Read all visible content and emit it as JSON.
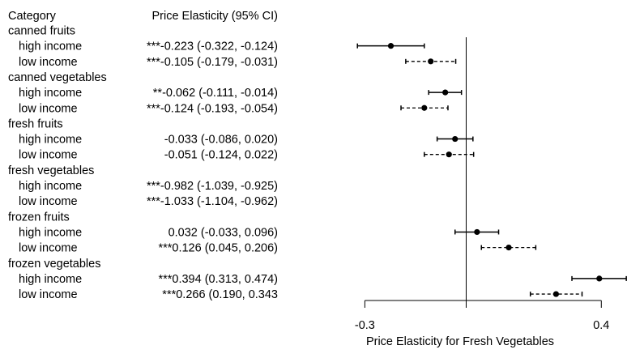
{
  "chart_data": {
    "type": "forest",
    "header": {
      "category": "Category",
      "estimate": "Price Elasticity (95% CI)"
    },
    "xlabel": "Price Elasticity for Fresh Vegetables",
    "xlim": [
      -0.33,
      0.48
    ],
    "xticks": [
      -0.3,
      0,
      0.4
    ],
    "xtick_labels": [
      "-0.3",
      "",
      "0.4"
    ],
    "reference_line": 0,
    "line_styles": {
      "high income": "solid",
      "low income": "dashed"
    },
    "groups": [
      {
        "category": "canned fruits",
        "rows": [
          {
            "label": "high income",
            "estimate_text": "***-0.223 (-0.322, -0.124)",
            "est": -0.223,
            "lo": -0.322,
            "hi": -0.124,
            "style": "solid"
          },
          {
            "label": "low income",
            "estimate_text": "***-0.105 (-0.179, -0.031)",
            "est": -0.105,
            "lo": -0.179,
            "hi": -0.031,
            "style": "dashed"
          }
        ]
      },
      {
        "category": "canned vegetables",
        "rows": [
          {
            "label": "high income",
            "estimate_text": "**-0.062 (-0.111, -0.014)",
            "est": -0.062,
            "lo": -0.111,
            "hi": -0.014,
            "style": "solid"
          },
          {
            "label": "low income",
            "estimate_text": "***-0.124 (-0.193, -0.054)",
            "est": -0.124,
            "lo": -0.193,
            "hi": -0.054,
            "style": "dashed"
          }
        ]
      },
      {
        "category": "fresh fruits",
        "rows": [
          {
            "label": "high income",
            "estimate_text": "-0.033 (-0.086,  0.020)",
            "est": -0.033,
            "lo": -0.086,
            "hi": 0.02,
            "style": "solid"
          },
          {
            "label": "low income",
            "estimate_text": "-0.051 (-0.124,  0.022)",
            "est": -0.051,
            "lo": -0.124,
            "hi": 0.022,
            "style": "dashed"
          }
        ]
      },
      {
        "category": "fresh vegetables",
        "rows": [
          {
            "label": "high income",
            "estimate_text": "***-0.982 (-1.039, -0.925)",
            "est": null,
            "lo": null,
            "hi": null,
            "style": "solid"
          },
          {
            "label": "low income",
            "estimate_text": "***-1.033 (-1.104, -0.962)",
            "est": null,
            "lo": null,
            "hi": null,
            "style": "dashed"
          }
        ]
      },
      {
        "category": "frozen fruits",
        "rows": [
          {
            "label": "high income",
            "estimate_text": "0.032 (-0.033, 0.096)",
            "est": 0.032,
            "lo": -0.033,
            "hi": 0.096,
            "style": "solid"
          },
          {
            "label": "low income",
            "estimate_text": "***0.126  (0.045, 0.206)",
            "est": 0.126,
            "lo": 0.045,
            "hi": 0.206,
            "style": "dashed"
          }
        ]
      },
      {
        "category": "frozen vegetables",
        "rows": [
          {
            "label": "high income",
            "estimate_text": "***0.394 (0.313,  0.474)",
            "est": 0.394,
            "lo": 0.313,
            "hi": 0.474,
            "style": "solid"
          },
          {
            "label": "low income",
            "estimate_text": "***0.266 (0.190,  0.343",
            "est": 0.266,
            "lo": 0.19,
            "hi": 0.343,
            "style": "dashed"
          }
        ]
      }
    ]
  }
}
